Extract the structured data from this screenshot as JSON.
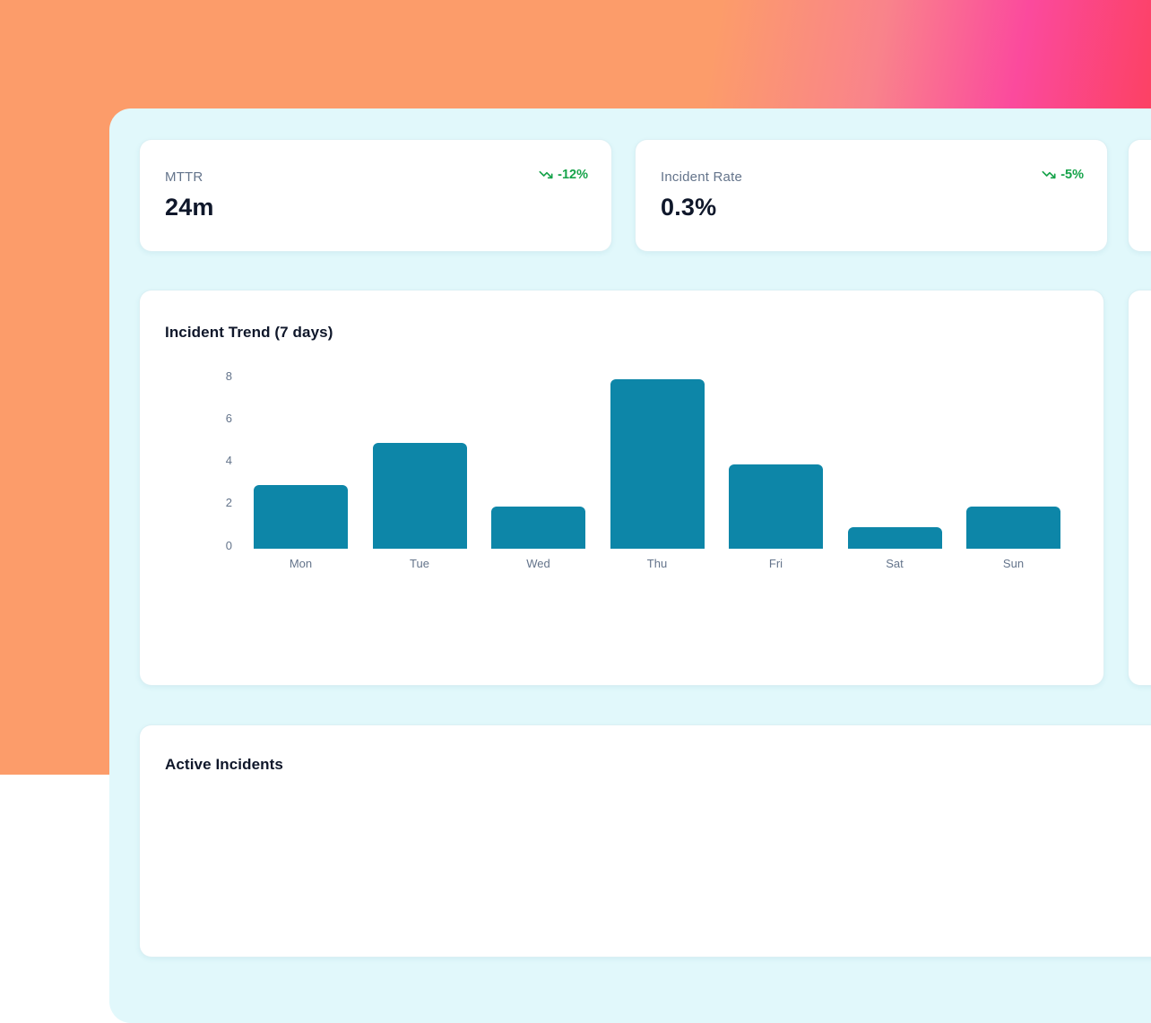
{
  "theme": {
    "background_gradient": {
      "left": "#fc9c6a",
      "pink": "#fb4a9d",
      "right": "#fc3e4e"
    },
    "panel_bg": "#e1f8fb",
    "card_bg": "#ffffff",
    "label_color": "#64748b",
    "value_color": "#0f172a",
    "trend_color": "#16a34a",
    "bar_color": "#0d86a8"
  },
  "icons": {
    "trend": "trending-down-icon"
  },
  "metric_cards": [
    {
      "label": "MTTR",
      "value": "24m",
      "trend": "-12%",
      "trend_direction": "down"
    },
    {
      "label": "Incident Rate",
      "value": "0.3%",
      "trend": "-5%",
      "trend_direction": "down"
    }
  ],
  "sections": {
    "active_title": "Active Incidents"
  },
  "chart_data": {
    "type": "bar",
    "title": "Incident Trend (7 days)",
    "categories": [
      "Mon",
      "Tue",
      "Wed",
      "Thu",
      "Fri",
      "Sat",
      "Sun"
    ],
    "values": [
      3,
      5,
      2,
      8,
      4,
      1,
      2
    ],
    "xlabel": "",
    "ylabel": "",
    "ylim": [
      0,
      8
    ],
    "yticks": [
      0,
      2,
      4,
      6,
      8
    ],
    "bar_color": "#0d86a8",
    "grid": false,
    "legend": false
  }
}
